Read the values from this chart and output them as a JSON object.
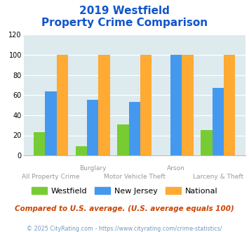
{
  "title_line1": "2019 Westfield",
  "title_line2": "Property Crime Comparison",
  "cat_labels_top": [
    "",
    "Burglary",
    "",
    "Arson",
    ""
  ],
  "cat_labels_bot": [
    "All Property Crime",
    "",
    "Motor Vehicle Theft",
    "",
    "Larceny & Theft"
  ],
  "westfield": [
    23,
    9,
    31,
    0,
    25
  ],
  "new_jersey": [
    64,
    55,
    53,
    100,
    67
  ],
  "national": [
    100,
    100,
    100,
    100,
    100
  ],
  "color_westfield": "#77cc33",
  "color_nj": "#4499ee",
  "color_national": "#ffaa33",
  "ylim": [
    0,
    120
  ],
  "yticks": [
    0,
    20,
    40,
    60,
    80,
    100,
    120
  ],
  "note": "Compared to U.S. average. (U.S. average equals 100)",
  "footer": "© 2025 CityRating.com - https://www.cityrating.com/crime-statistics/",
  "bg_color": "#ddeaee",
  "title_color": "#1155cc",
  "note_color": "#cc4400",
  "footer_color": "#7799bb",
  "label_color": "#999999"
}
